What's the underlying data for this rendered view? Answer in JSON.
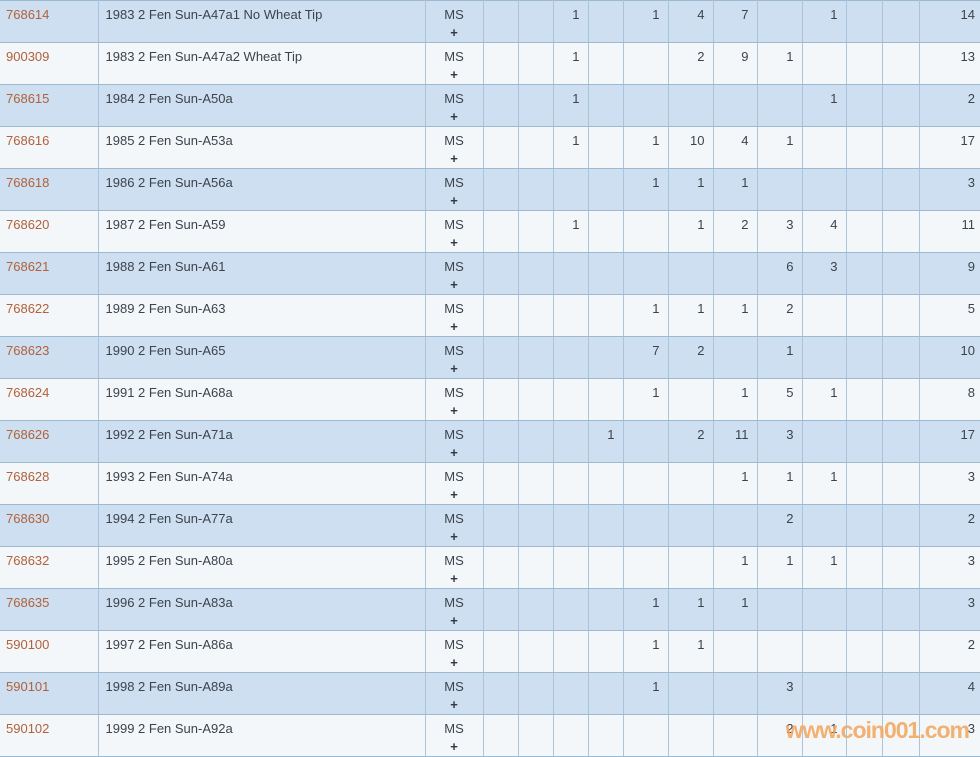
{
  "watermark": {
    "text": "www.coin001.com",
    "color": "#f2a75f"
  },
  "colors": {
    "row_blue_bg": "#cddff0",
    "row_light_bg": "#f3f7fa",
    "grid_border": "#9db9cf",
    "id_link_text": "#b2613a",
    "body_text": "#3d434c"
  },
  "table": {
    "grade_label": "MS",
    "grade_plus": "+",
    "grade_column_count": 11,
    "rows": [
      {
        "id": "768614",
        "desc": "1983 2 Fen Sun-A47a1 No Wheat Tip",
        "values": [
          "",
          "",
          "1",
          "",
          "1",
          "4",
          "7",
          "",
          "1",
          "",
          ""
        ],
        "total": "14"
      },
      {
        "id": "900309",
        "desc": "1983 2 Fen Sun-A47a2 Wheat Tip",
        "values": [
          "",
          "",
          "1",
          "",
          "",
          "2",
          "9",
          "1",
          "",
          "",
          ""
        ],
        "total": "13"
      },
      {
        "id": "768615",
        "desc": "1984 2 Fen Sun-A50a",
        "values": [
          "",
          "",
          "1",
          "",
          "",
          "",
          "",
          "",
          "1",
          "",
          ""
        ],
        "total": "2"
      },
      {
        "id": "768616",
        "desc": "1985 2 Fen Sun-A53a",
        "values": [
          "",
          "",
          "1",
          "",
          "1",
          "10",
          "4",
          "1",
          "",
          "",
          ""
        ],
        "total": "17"
      },
      {
        "id": "768618",
        "desc": "1986 2 Fen Sun-A56a",
        "values": [
          "",
          "",
          "",
          "",
          "1",
          "1",
          "1",
          "",
          "",
          "",
          ""
        ],
        "total": "3"
      },
      {
        "id": "768620",
        "desc": "1987 2 Fen Sun-A59",
        "values": [
          "",
          "",
          "1",
          "",
          "",
          "1",
          "2",
          "3",
          "4",
          "",
          ""
        ],
        "total": "11"
      },
      {
        "id": "768621",
        "desc": "1988 2 Fen Sun-A61",
        "values": [
          "",
          "",
          "",
          "",
          "",
          "",
          "",
          "6",
          "3",
          "",
          ""
        ],
        "total": "9"
      },
      {
        "id": "768622",
        "desc": "1989 2 Fen Sun-A63",
        "values": [
          "",
          "",
          "",
          "",
          "1",
          "1",
          "1",
          "2",
          "",
          "",
          ""
        ],
        "total": "5"
      },
      {
        "id": "768623",
        "desc": "1990 2 Fen Sun-A65",
        "values": [
          "",
          "",
          "",
          "",
          "7",
          "2",
          "",
          "1",
          "",
          "",
          ""
        ],
        "total": "10"
      },
      {
        "id": "768624",
        "desc": "1991 2 Fen Sun-A68a",
        "values": [
          "",
          "",
          "",
          "",
          "1",
          "",
          "1",
          "5",
          "1",
          "",
          ""
        ],
        "total": "8"
      },
      {
        "id": "768626",
        "desc": "1992 2 Fen Sun-A71a",
        "values": [
          "",
          "",
          "",
          "1",
          "",
          "2",
          "11",
          "3",
          "",
          "",
          ""
        ],
        "total": "17"
      },
      {
        "id": "768628",
        "desc": "1993 2 Fen Sun-A74a",
        "values": [
          "",
          "",
          "",
          "",
          "",
          "",
          "1",
          "1",
          "1",
          "",
          ""
        ],
        "total": "3"
      },
      {
        "id": "768630",
        "desc": "1994 2 Fen Sun-A77a",
        "values": [
          "",
          "",
          "",
          "",
          "",
          "",
          "",
          "2",
          "",
          "",
          ""
        ],
        "total": "2"
      },
      {
        "id": "768632",
        "desc": "1995 2 Fen Sun-A80a",
        "values": [
          "",
          "",
          "",
          "",
          "",
          "",
          "1",
          "1",
          "1",
          "",
          ""
        ],
        "total": "3"
      },
      {
        "id": "768635",
        "desc": "1996 2 Fen Sun-A83a",
        "values": [
          "",
          "",
          "",
          "",
          "1",
          "1",
          "1",
          "",
          "",
          "",
          ""
        ],
        "total": "3"
      },
      {
        "id": "590100",
        "desc": "1997 2 Fen Sun-A86a",
        "values": [
          "",
          "",
          "",
          "",
          "1",
          "1",
          "",
          "",
          "",
          "",
          ""
        ],
        "total": "2"
      },
      {
        "id": "590101",
        "desc": "1998 2 Fen Sun-A89a",
        "values": [
          "",
          "",
          "",
          "",
          "1",
          "",
          "",
          "3",
          "",
          "",
          ""
        ],
        "total": "4"
      },
      {
        "id": "590102",
        "desc": "1999 2 Fen Sun-A92a",
        "values": [
          "",
          "",
          "",
          "",
          "",
          "",
          "",
          "2",
          "1",
          "",
          ""
        ],
        "total": "3"
      }
    ]
  }
}
